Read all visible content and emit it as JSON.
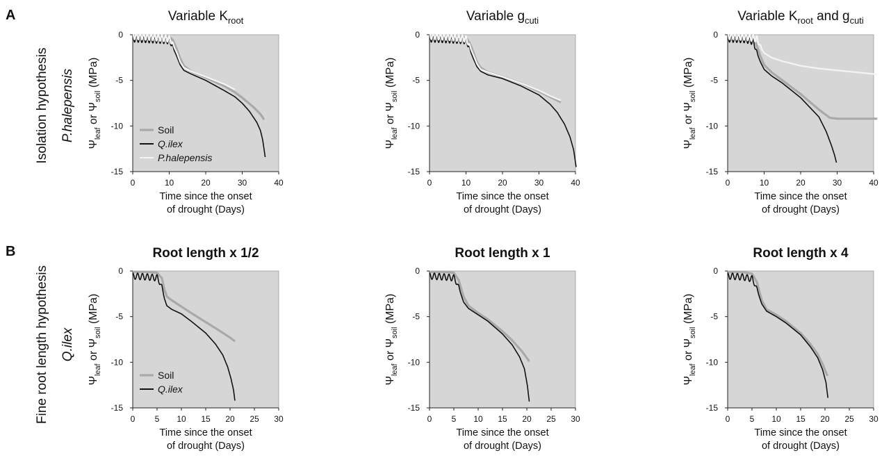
{
  "figure": {
    "panel_labels": [
      "A",
      "B"
    ],
    "row_labels": [
      {
        "main": "Isolation hypothesis",
        "sub": "P.halepensis"
      },
      {
        "main": "Fine root length hypothesis",
        "sub": "Q.ilex"
      }
    ],
    "titles": [
      {
        "pre": "Variable K",
        "sub": "root",
        "post": "",
        "sub2": ""
      },
      {
        "pre": "Variable g",
        "sub": "cuti",
        "post": "",
        "sub2": ""
      },
      {
        "pre": "Variable K",
        "sub": "root",
        "post": " and g",
        "sub2": "cuti"
      },
      {
        "pre": "Root length x 1/2",
        "sub": "",
        "post": "",
        "sub2": ""
      },
      {
        "pre": "Root length x 1",
        "sub": "",
        "post": "",
        "sub2": ""
      },
      {
        "pre": "Root length x 4",
        "sub": "",
        "post": "",
        "sub2": ""
      }
    ],
    "xlabel_line1": "Time since the onset",
    "xlabel_line2": "of drought (Days)",
    "ylabel": {
      "psi1": "Ψ",
      "sub1": "leaf",
      "mid": " or ",
      "psi2": "Ψ",
      "sub2": "soil",
      "post": " (MPa)"
    },
    "legend_A": [
      "Soil",
      "Q.ilex",
      "P.halepensis"
    ],
    "legend_B": [
      "Soil",
      "Q.ilex"
    ]
  },
  "colors": {
    "plot_bg": "#d6d6d6",
    "soil": "#a9a9a9",
    "q_ilex": "#111111",
    "p_halepensis": "#f4f4f4"
  },
  "chart_data": [
    {
      "type": "line",
      "title": "Variable Kroot",
      "xlabel": "Time since the onset of drought (Days)",
      "ylabel": "Ψleaf or Ψsoil (MPa)",
      "xlim": [
        0,
        40
      ],
      "ylim": [
        -15,
        0
      ],
      "xticks": [
        0,
        10,
        20,
        30,
        40
      ],
      "yticks": [
        0,
        -5,
        -10,
        -15
      ],
      "legend": "bottom-left",
      "series": [
        {
          "name": "Soil",
          "x": [
            0,
            5,
            10,
            11,
            12,
            13,
            14,
            16,
            20,
            25,
            28,
            30,
            33,
            35,
            36
          ],
          "y": [
            -0.1,
            -0.1,
            -0.2,
            -0.6,
            -1.5,
            -2.6,
            -3.4,
            -4.0,
            -4.7,
            -5.6,
            -6.3,
            -6.9,
            -7.9,
            -8.7,
            -9.3
          ]
        },
        {
          "name": "Q.ilex",
          "x": [
            0,
            5,
            10,
            11,
            12,
            13,
            14,
            16,
            20,
            25,
            28,
            30,
            32,
            34,
            35,
            35.6,
            36,
            36.3
          ],
          "y": [
            -0.8,
            -0.9,
            -1.0,
            -1.4,
            -2.3,
            -3.3,
            -3.9,
            -4.3,
            -5.0,
            -6.1,
            -6.8,
            -7.5,
            -8.4,
            -9.6,
            -10.5,
            -11.5,
            -12.6,
            -13.4
          ]
        },
        {
          "name": "P.halepensis",
          "x": [
            0,
            5,
            10,
            11,
            12,
            13,
            14,
            16,
            20,
            25,
            28
          ],
          "y": [
            -0.5,
            -0.6,
            -0.8,
            -1.1,
            -1.9,
            -3.0,
            -3.6,
            -4.0,
            -4.6,
            -5.4,
            -6.0
          ]
        }
      ]
    },
    {
      "type": "line",
      "title": "Variable gcuti",
      "xlabel": "Time since the onset of drought (Days)",
      "ylabel": "Ψleaf or Ψsoil (MPa)",
      "xlim": [
        0,
        40
      ],
      "ylim": [
        -15,
        0
      ],
      "xticks": [
        0,
        10,
        20,
        30,
        40
      ],
      "yticks": [
        0,
        -5,
        -10,
        -15
      ],
      "series": [
        {
          "name": "Soil",
          "x": [
            0,
            5,
            10,
            11,
            12,
            13,
            14,
            16,
            20,
            25,
            30,
            33,
            36
          ],
          "y": [
            -0.1,
            -0.1,
            -0.3,
            -0.9,
            -1.9,
            -3.0,
            -3.6,
            -4.1,
            -4.6,
            -5.3,
            -6.2,
            -6.8,
            -7.4
          ]
        },
        {
          "name": "Q.ilex",
          "x": [
            0,
            5,
            10,
            11,
            12,
            13,
            14,
            16,
            20,
            25,
            30,
            33,
            35,
            37,
            38.5,
            39.5,
            40.2
          ],
          "y": [
            -0.8,
            -0.9,
            -1.0,
            -1.6,
            -2.6,
            -3.5,
            -4.0,
            -4.4,
            -4.8,
            -5.6,
            -6.6,
            -7.6,
            -8.5,
            -9.8,
            -11.2,
            -12.6,
            -14.5
          ]
        },
        {
          "name": "P.halepensis",
          "x": [
            0,
            5,
            10,
            11,
            12,
            13,
            14,
            16,
            20,
            25,
            30,
            33,
            36
          ],
          "y": [
            -0.5,
            -0.6,
            -0.8,
            -1.3,
            -2.2,
            -3.2,
            -3.8,
            -4.1,
            -4.6,
            -5.3,
            -6.1,
            -6.7,
            -7.2
          ]
        }
      ]
    },
    {
      "type": "line",
      "title": "Variable Kroot and gcuti",
      "xlabel": "Time since the onset of drought (Days)",
      "ylabel": "Ψleaf or Ψsoil (MPa)",
      "xlim": [
        0,
        40
      ],
      "ylim": [
        -15,
        0
      ],
      "xticks": [
        0,
        10,
        20,
        30,
        40
      ],
      "yticks": [
        0,
        -5,
        -10,
        -15
      ],
      "series": [
        {
          "name": "Soil",
          "x": [
            0,
            5,
            7,
            8,
            9,
            10,
            12,
            15,
            20,
            25,
            28,
            30,
            35,
            40,
            41
          ],
          "y": [
            -0.1,
            -0.1,
            -0.3,
            -1.2,
            -2.4,
            -3.3,
            -4.1,
            -5.0,
            -6.5,
            -8.2,
            -9.1,
            -9.2,
            -9.2,
            -9.2,
            -9.2
          ]
        },
        {
          "name": "Q.ilex",
          "x": [
            0,
            5,
            7,
            8,
            9,
            10,
            12,
            15,
            20,
            25,
            27,
            28.5,
            29.3,
            29.8
          ],
          "y": [
            -0.8,
            -0.9,
            -1.1,
            -2.0,
            -3.0,
            -3.8,
            -4.5,
            -5.3,
            -6.9,
            -9.0,
            -10.6,
            -12.2,
            -13.2,
            -14.0
          ]
        },
        {
          "name": "P.halepensis",
          "x": [
            0,
            5,
            8,
            9,
            10,
            12,
            15,
            20,
            25,
            30,
            35,
            40,
            41
          ],
          "y": [
            -0.5,
            -0.6,
            -0.8,
            -1.4,
            -2.0,
            -2.5,
            -2.9,
            -3.4,
            -3.7,
            -3.9,
            -4.1,
            -4.3,
            -4.35
          ]
        }
      ]
    },
    {
      "type": "line",
      "title": "Root length x 1/2",
      "xlabel": "Time since the onset of drought (Days)",
      "ylabel": "Ψleaf or Ψsoil (MPa)",
      "xlim": [
        0,
        30
      ],
      "ylim": [
        -15,
        0
      ],
      "xticks": [
        0,
        5,
        10,
        15,
        20,
        25,
        30
      ],
      "yticks": [
        0,
        -5,
        -10,
        -15
      ],
      "legend": "bottom-left",
      "series": [
        {
          "name": "Soil",
          "x": [
            0,
            3,
            5,
            6,
            6.5,
            7,
            8,
            10,
            12,
            15,
            18,
            20,
            21
          ],
          "y": [
            -0.1,
            -0.1,
            -0.2,
            -0.8,
            -2.0,
            -2.8,
            -3.2,
            -3.9,
            -4.6,
            -5.6,
            -6.6,
            -7.3,
            -7.7
          ]
        },
        {
          "name": "Q.ilex",
          "x": [
            0,
            3,
            5,
            6,
            6.5,
            7,
            8,
            10,
            12,
            15,
            17,
            18.5,
            19.5,
            20.2,
            20.7,
            21
          ],
          "y": [
            -0.9,
            -1.0,
            -1.1,
            -1.8,
            -3.0,
            -3.8,
            -4.2,
            -4.7,
            -5.5,
            -6.8,
            -8.0,
            -9.2,
            -10.5,
            -11.8,
            -13.0,
            -14.2
          ]
        }
      ]
    },
    {
      "type": "line",
      "title": "Root length x 1",
      "xlabel": "Time since the onset of drought (Days)",
      "ylabel": "Ψleaf or Ψsoil (MPa)",
      "xlim": [
        0,
        30
      ],
      "ylim": [
        -15,
        0
      ],
      "xticks": [
        0,
        5,
        10,
        15,
        20,
        25,
        30
      ],
      "yticks": [
        0,
        -5,
        -10,
        -15
      ],
      "series": [
        {
          "name": "Soil",
          "x": [
            0,
            3,
            5,
            6,
            7,
            8,
            10,
            12,
            15,
            17,
            19,
            20.5
          ],
          "y": [
            -0.1,
            -0.1,
            -0.2,
            -1.0,
            -2.8,
            -3.8,
            -4.6,
            -5.3,
            -6.6,
            -7.6,
            -8.8,
            -9.9
          ]
        },
        {
          "name": "Q.ilex",
          "x": [
            0,
            3,
            5,
            6,
            7,
            8,
            10,
            12,
            15,
            17,
            18.5,
            19.5,
            20.1,
            20.5
          ],
          "y": [
            -0.9,
            -1.0,
            -1.1,
            -1.8,
            -3.4,
            -4.1,
            -4.8,
            -5.5,
            -6.9,
            -8.1,
            -9.4,
            -10.7,
            -12.5,
            -14.3
          ]
        }
      ]
    },
    {
      "type": "line",
      "title": "Root length x 4",
      "xlabel": "Time since the onset of drought (Days)",
      "ylabel": "Ψleaf or Ψsoil (MPa)",
      "xlim": [
        0,
        30
      ],
      "ylim": [
        -15,
        0
      ],
      "xticks": [
        0,
        5,
        10,
        15,
        20,
        25,
        30
      ],
      "yticks": [
        0,
        -5,
        -10,
        -15
      ],
      "series": [
        {
          "name": "Soil",
          "x": [
            0,
            3,
            5,
            6,
            7,
            8,
            10,
            12,
            15,
            17,
            18.5,
            19.5,
            20.5
          ],
          "y": [
            -0.1,
            -0.1,
            -0.3,
            -1.2,
            -3.2,
            -4.2,
            -4.8,
            -5.5,
            -6.8,
            -8.0,
            -9.1,
            -10.2,
            -11.5
          ]
        },
        {
          "name": "Q.ilex",
          "x": [
            0,
            3,
            5,
            6,
            7,
            8,
            10,
            12,
            15,
            17,
            18.5,
            19.5,
            20.2,
            20.6
          ],
          "y": [
            -0.9,
            -1.0,
            -1.2,
            -2.0,
            -3.6,
            -4.4,
            -5.0,
            -5.7,
            -7.0,
            -8.3,
            -9.5,
            -10.8,
            -12.2,
            -13.9
          ]
        }
      ]
    }
  ]
}
